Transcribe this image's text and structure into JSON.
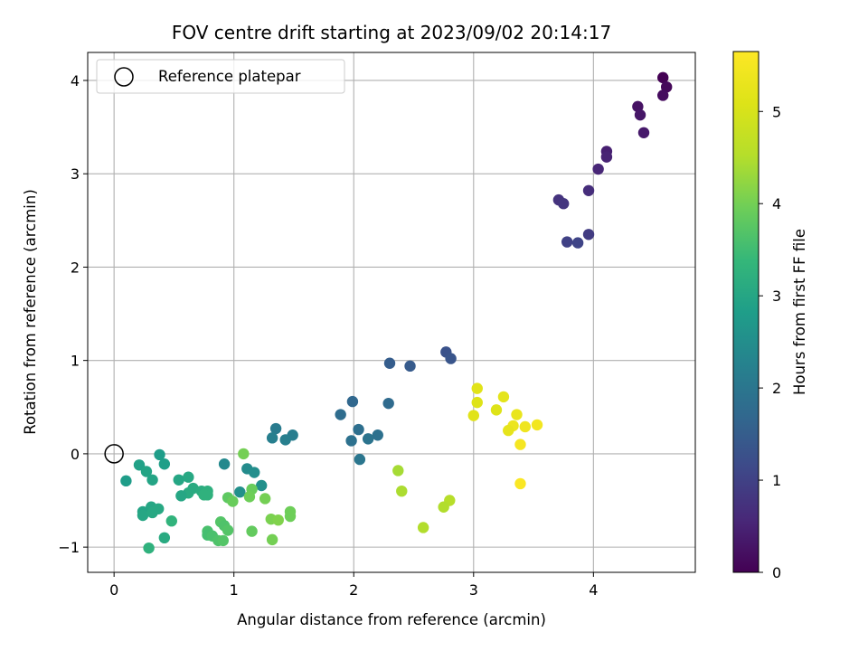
{
  "chart_data": {
    "type": "scatter",
    "title": "FOV centre drift starting at 2023/09/02 20:14:17",
    "xlabel": "Angular distance from reference (arcmin)",
    "ylabel": "Rotation from reference (arcmin)",
    "xlim": [
      -0.22,
      4.85
    ],
    "ylim": [
      -1.27,
      4.3
    ],
    "xticks": [
      0,
      1,
      2,
      3,
      4
    ],
    "yticks": [
      -1,
      0,
      1,
      2,
      3,
      4
    ],
    "grid": true,
    "legend": {
      "placement": "top-left",
      "entries": [
        "Reference platepar"
      ]
    },
    "reference_point": {
      "x": 0,
      "y": 0
    },
    "colorbar": {
      "label": "Hours from first FF file",
      "colormap": "viridis",
      "range": [
        0,
        5.65
      ],
      "ticks": [
        0,
        1,
        2,
        3,
        4,
        5
      ]
    },
    "series": [
      {
        "points": [
          {
            "x": 4.58,
            "y": 4.03,
            "hours": 0.0
          },
          {
            "x": 4.61,
            "y": 3.93,
            "hours": 0.1
          },
          {
            "x": 4.58,
            "y": 3.84,
            "hours": 0.15
          },
          {
            "x": 4.37,
            "y": 3.72,
            "hours": 0.25
          },
          {
            "x": 4.39,
            "y": 3.63,
            "hours": 0.3
          },
          {
            "x": 4.42,
            "y": 3.44,
            "hours": 0.35
          },
          {
            "x": 4.11,
            "y": 3.24,
            "hours": 0.45
          },
          {
            "x": 4.11,
            "y": 3.18,
            "hours": 0.5
          },
          {
            "x": 4.04,
            "y": 3.05,
            "hours": 0.55
          },
          {
            "x": 3.96,
            "y": 2.82,
            "hours": 0.65
          },
          {
            "x": 3.71,
            "y": 2.72,
            "hours": 0.75
          },
          {
            "x": 3.75,
            "y": 2.68,
            "hours": 0.8
          },
          {
            "x": 3.96,
            "y": 2.35,
            "hours": 0.9
          },
          {
            "x": 3.78,
            "y": 2.27,
            "hours": 1.0
          },
          {
            "x": 3.87,
            "y": 2.26,
            "hours": 1.05
          },
          {
            "x": 2.77,
            "y": 1.09,
            "hours": 1.3
          },
          {
            "x": 2.81,
            "y": 1.02,
            "hours": 1.35
          },
          {
            "x": 2.3,
            "y": 0.97,
            "hours": 1.5
          },
          {
            "x": 2.47,
            "y": 0.94,
            "hours": 1.45
          },
          {
            "x": 1.99,
            "y": 0.56,
            "hours": 1.7
          },
          {
            "x": 2.29,
            "y": 0.54,
            "hours": 1.75
          },
          {
            "x": 1.89,
            "y": 0.42,
            "hours": 1.8
          },
          {
            "x": 2.04,
            "y": 0.26,
            "hours": 1.85
          },
          {
            "x": 2.2,
            "y": 0.2,
            "hours": 1.9
          },
          {
            "x": 2.12,
            "y": 0.16,
            "hours": 1.95
          },
          {
            "x": 1.98,
            "y": 0.14,
            "hours": 1.9
          },
          {
            "x": 2.05,
            "y": -0.06,
            "hours": 2.0
          },
          {
            "x": 1.35,
            "y": 0.27,
            "hours": 2.1
          },
          {
            "x": 1.49,
            "y": 0.2,
            "hours": 2.15
          },
          {
            "x": 1.32,
            "y": 0.17,
            "hours": 2.2
          },
          {
            "x": 1.43,
            "y": 0.15,
            "hours": 2.2
          },
          {
            "x": 0.92,
            "y": -0.11,
            "hours": 2.4
          },
          {
            "x": 1.11,
            "y": -0.16,
            "hours": 2.45
          },
          {
            "x": 1.17,
            "y": -0.2,
            "hours": 2.5
          },
          {
            "x": 1.23,
            "y": -0.34,
            "hours": 2.55
          },
          {
            "x": 1.05,
            "y": -0.41,
            "hours": 2.55
          },
          {
            "x": 0.38,
            "y": -0.01,
            "hours": 2.8
          },
          {
            "x": 0.42,
            "y": -0.11,
            "hours": 2.85
          },
          {
            "x": 0.21,
            "y": -0.12,
            "hours": 2.9
          },
          {
            "x": 0.27,
            "y": -0.19,
            "hours": 2.95
          },
          {
            "x": 0.1,
            "y": -0.29,
            "hours": 2.8
          },
          {
            "x": 0.32,
            "y": -0.28,
            "hours": 2.95
          },
          {
            "x": 0.54,
            "y": -0.28,
            "hours": 3.0
          },
          {
            "x": 0.62,
            "y": -0.25,
            "hours": 3.05
          },
          {
            "x": 0.66,
            "y": -0.37,
            "hours": 3.1
          },
          {
            "x": 0.62,
            "y": -0.42,
            "hours": 3.1
          },
          {
            "x": 0.73,
            "y": -0.4,
            "hours": 3.15
          },
          {
            "x": 0.78,
            "y": -0.4,
            "hours": 3.2
          },
          {
            "x": 0.56,
            "y": -0.45,
            "hours": 3.0
          },
          {
            "x": 0.78,
            "y": -0.44,
            "hours": 3.25
          },
          {
            "x": 0.75,
            "y": -0.44,
            "hours": 3.25
          },
          {
            "x": 0.31,
            "y": -0.57,
            "hours": 3.0
          },
          {
            "x": 0.37,
            "y": -0.59,
            "hours": 3.05
          },
          {
            "x": 0.24,
            "y": -0.62,
            "hours": 2.95
          },
          {
            "x": 0.24,
            "y": -0.66,
            "hours": 3.0
          },
          {
            "x": 0.32,
            "y": -0.63,
            "hours": 3.05
          },
          {
            "x": 0.48,
            "y": -0.72,
            "hours": 3.3
          },
          {
            "x": 0.42,
            "y": -0.9,
            "hours": 3.1
          },
          {
            "x": 0.29,
            "y": -1.01,
            "hours": 3.25
          },
          {
            "x": 1.08,
            "y": 0.0,
            "hours": 4.0
          },
          {
            "x": 0.95,
            "y": -0.47,
            "hours": 3.8
          },
          {
            "x": 0.99,
            "y": -0.51,
            "hours": 3.9
          },
          {
            "x": 1.15,
            "y": -0.38,
            "hours": 3.9
          },
          {
            "x": 1.13,
            "y": -0.46,
            "hours": 3.95
          },
          {
            "x": 1.26,
            "y": -0.48,
            "hours": 4.0
          },
          {
            "x": 0.89,
            "y": -0.73,
            "hours": 3.7
          },
          {
            "x": 0.78,
            "y": -0.83,
            "hours": 3.6
          },
          {
            "x": 0.92,
            "y": -0.77,
            "hours": 3.65
          },
          {
            "x": 0.95,
            "y": -0.82,
            "hours": 3.7
          },
          {
            "x": 0.78,
            "y": -0.87,
            "hours": 3.55
          },
          {
            "x": 0.82,
            "y": -0.88,
            "hours": 3.6
          },
          {
            "x": 0.87,
            "y": -0.93,
            "hours": 3.65
          },
          {
            "x": 0.91,
            "y": -0.93,
            "hours": 3.7
          },
          {
            "x": 1.15,
            "y": -0.83,
            "hours": 3.85
          },
          {
            "x": 1.47,
            "y": -0.62,
            "hours": 3.95
          },
          {
            "x": 1.47,
            "y": -0.67,
            "hours": 3.95
          },
          {
            "x": 1.31,
            "y": -0.7,
            "hours": 4.05
          },
          {
            "x": 1.37,
            "y": -0.71,
            "hours": 4.1
          },
          {
            "x": 1.32,
            "y": -0.92,
            "hours": 4.0
          },
          {
            "x": 2.37,
            "y": -0.18,
            "hours": 4.4
          },
          {
            "x": 2.4,
            "y": -0.4,
            "hours": 4.45
          },
          {
            "x": 2.8,
            "y": -0.5,
            "hours": 4.55
          },
          {
            "x": 2.75,
            "y": -0.57,
            "hours": 4.5
          },
          {
            "x": 2.58,
            "y": -0.79,
            "hours": 4.5
          },
          {
            "x": 3.03,
            "y": 0.7,
            "hours": 5.15
          },
          {
            "x": 3.03,
            "y": 0.55,
            "hours": 5.1
          },
          {
            "x": 3.25,
            "y": 0.61,
            "hours": 5.2
          },
          {
            "x": 3.19,
            "y": 0.47,
            "hours": 5.1
          },
          {
            "x": 3.0,
            "y": 0.41,
            "hours": 5.15
          },
          {
            "x": 3.36,
            "y": 0.42,
            "hours": 5.3
          },
          {
            "x": 3.33,
            "y": 0.3,
            "hours": 5.35
          },
          {
            "x": 3.53,
            "y": 0.31,
            "hours": 5.45
          },
          {
            "x": 3.43,
            "y": 0.29,
            "hours": 5.4
          },
          {
            "x": 3.29,
            "y": 0.25,
            "hours": 5.25
          },
          {
            "x": 3.39,
            "y": 0.1,
            "hours": 5.5
          },
          {
            "x": 3.39,
            "y": -0.32,
            "hours": 5.6
          }
        ]
      }
    ]
  }
}
